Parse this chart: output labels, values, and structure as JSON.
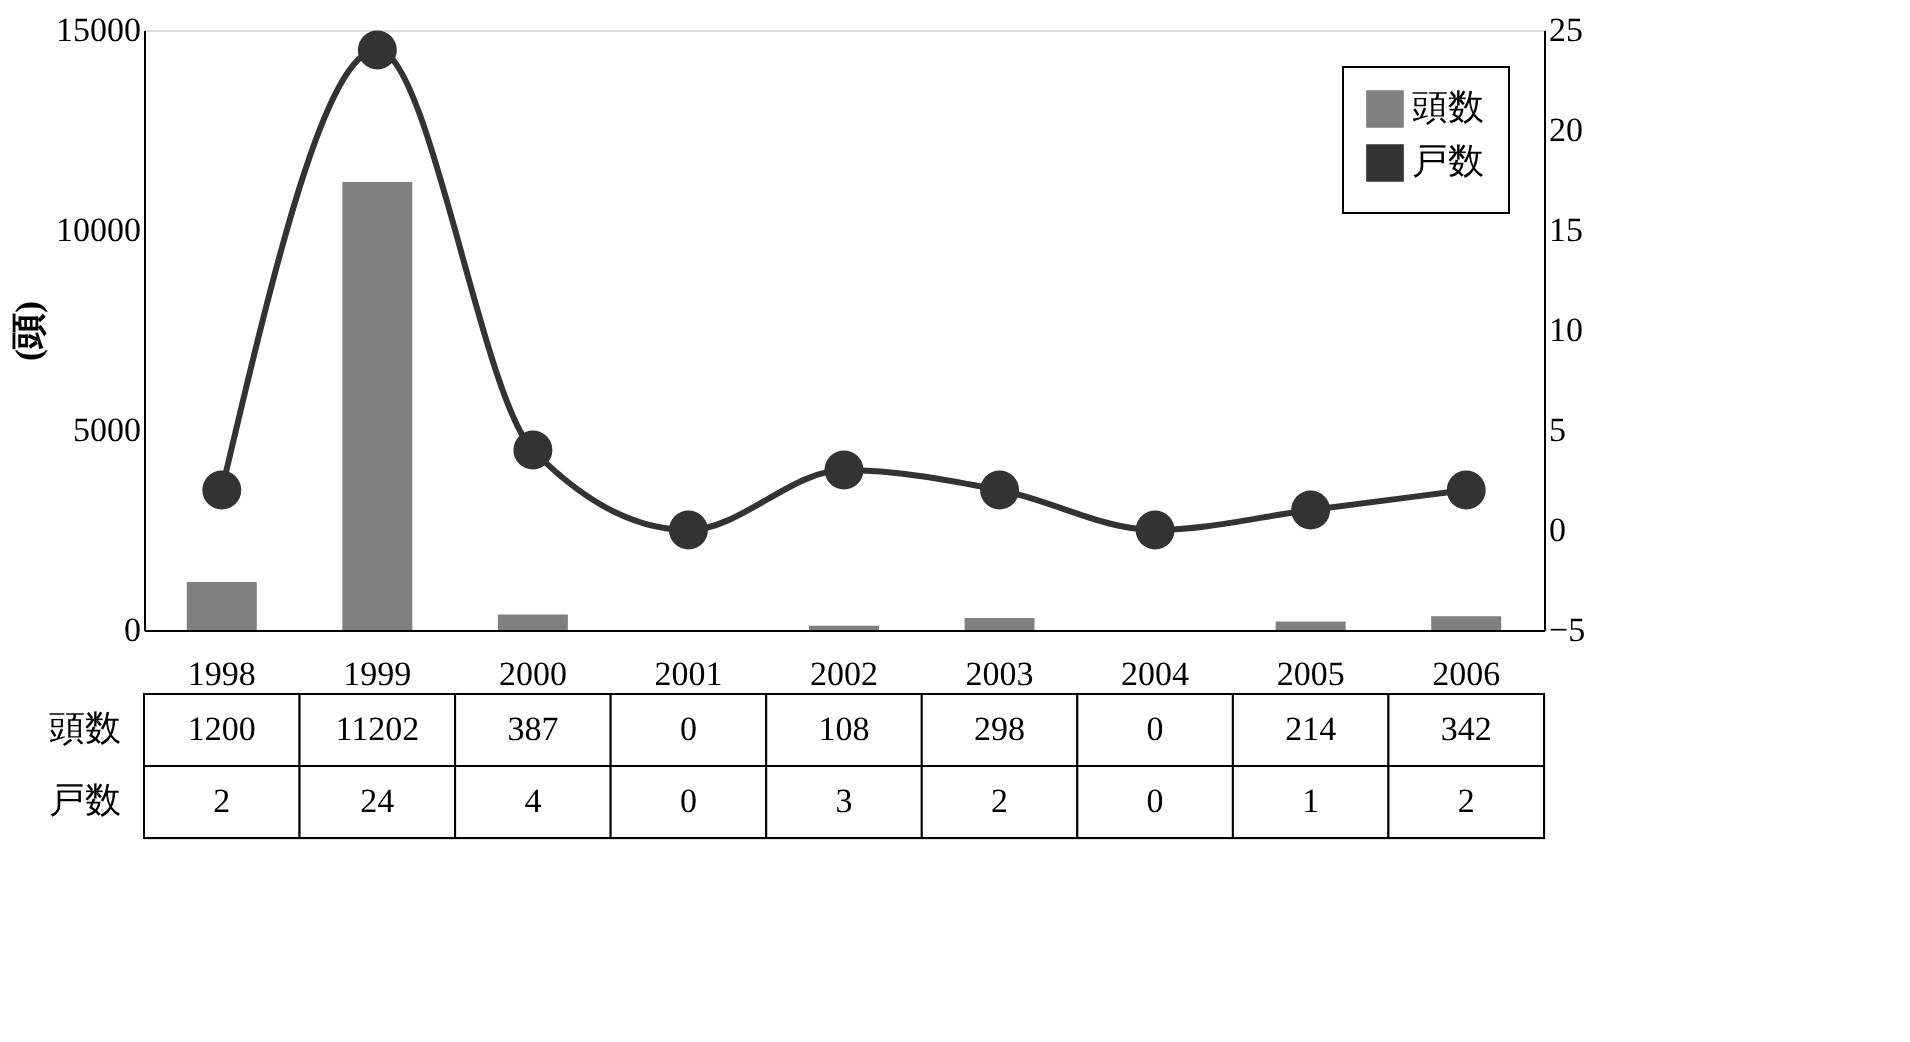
{
  "chart_data": {
    "type": "bar",
    "categories": [
      "1998",
      "1999",
      "2000",
      "2001",
      "2002",
      "2003",
      "2004",
      "2005",
      "2006"
    ],
    "ylabel": "(頭)",
    "ylim": [
      0,
      15000
    ],
    "yticks": [
      0,
      5000,
      10000,
      15000
    ],
    "y2lim": [
      -5,
      25
    ],
    "y2ticks": [
      {
        "value": -5,
        "label": "−5"
      },
      0,
      5,
      10,
      15,
      20,
      25
    ],
    "series": [
      {
        "name": "頭数",
        "color": "#808080",
        "values": [
          1200,
          11202,
          387,
          0,
          108,
          298,
          0,
          214,
          342
        ]
      },
      {
        "name": "戸数",
        "type": "line",
        "axis": "y2",
        "color": "#333333",
        "marker": "circle",
        "line_style": "solid",
        "values": [
          2,
          24,
          4,
          0,
          3,
          2,
          0,
          1,
          2
        ]
      }
    ],
    "data_labels": true,
    "legend": "top right",
    "grid": false
  }
}
